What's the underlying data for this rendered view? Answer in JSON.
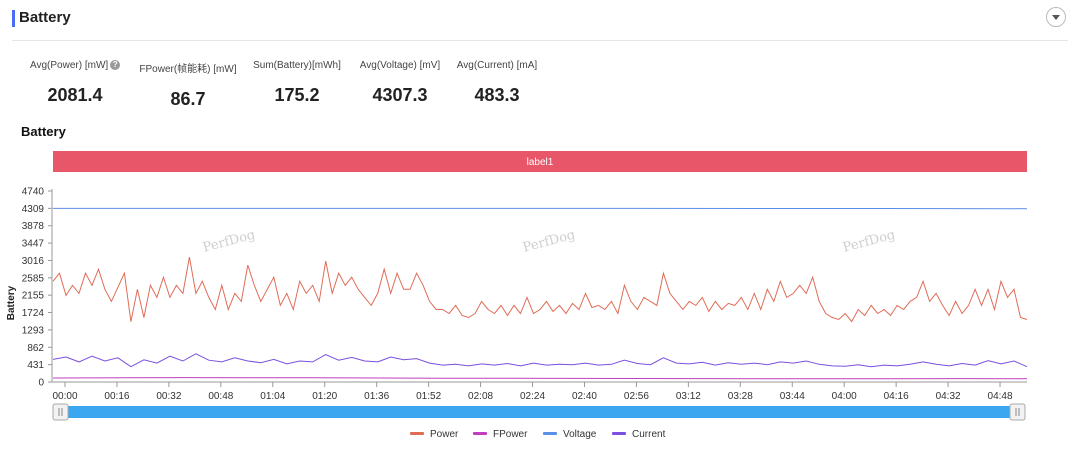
{
  "header": {
    "title": "Battery"
  },
  "metrics": [
    {
      "label": "Avg(Power) [mW]",
      "value": "2081.4",
      "help": "?"
    },
    {
      "label": "FPower(帧能耗) [mW]",
      "value": "86.7"
    },
    {
      "label": "Sum(Battery)[mWh]",
      "value": "175.2"
    },
    {
      "label": "Avg(Voltage) [mV]",
      "value": "4307.3"
    },
    {
      "label": "Avg(Current) [mA]",
      "value": "483.3"
    }
  ],
  "chart_title": "Battery",
  "colors": {
    "accent": "#4a6cf7",
    "label_band": "#e8566a",
    "power": "#e06c57",
    "fpower": "#c03fbf",
    "voltage": "#5b8fe8",
    "current": "#7b4fe0",
    "slider": "#3aa7f0"
  },
  "watermark": "PerfDog",
  "chart_data": {
    "type": "line",
    "band_label": "label1",
    "ylabel": "Battery",
    "yticks": [
      0,
      431,
      862,
      1293,
      1724,
      2155,
      2585,
      3016,
      3447,
      3878,
      4309,
      4740
    ],
    "ylim": [
      0,
      4740
    ],
    "xlim": [
      0,
      300
    ],
    "xticks": [
      "00:00",
      "00:16",
      "00:32",
      "00:48",
      "01:04",
      "01:20",
      "01:36",
      "01:52",
      "02:08",
      "02:24",
      "02:40",
      "02:56",
      "03:12",
      "03:28",
      "03:44",
      "04:00",
      "04:16",
      "04:32",
      "04:48"
    ],
    "xtick_seconds": [
      0,
      16,
      32,
      48,
      64,
      80,
      96,
      112,
      128,
      144,
      160,
      176,
      192,
      208,
      224,
      240,
      256,
      272,
      288
    ],
    "grid": false,
    "legend_position": "bottom",
    "series": [
      {
        "name": "Power",
        "points": [
          [
            0,
            2500
          ],
          [
            2,
            2700
          ],
          [
            4,
            2150
          ],
          [
            6,
            2400
          ],
          [
            8,
            2200
          ],
          [
            10,
            2700
          ],
          [
            12,
            2400
          ],
          [
            14,
            2800
          ],
          [
            16,
            2300
          ],
          [
            18,
            2000
          ],
          [
            20,
            2350
          ],
          [
            22,
            2700
          ],
          [
            24,
            1500
          ],
          [
            26,
            2300
          ],
          [
            28,
            1600
          ],
          [
            30,
            2400
          ],
          [
            32,
            2100
          ],
          [
            34,
            2600
          ],
          [
            36,
            2100
          ],
          [
            38,
            2400
          ],
          [
            40,
            2200
          ],
          [
            42,
            3100
          ],
          [
            44,
            2200
          ],
          [
            46,
            2500
          ],
          [
            48,
            2100
          ],
          [
            50,
            1800
          ],
          [
            52,
            2400
          ],
          [
            54,
            1800
          ],
          [
            56,
            2200
          ],
          [
            58,
            2000
          ],
          [
            60,
            2900
          ],
          [
            62,
            2400
          ],
          [
            64,
            2000
          ],
          [
            66,
            2300
          ],
          [
            68,
            2600
          ],
          [
            70,
            1900
          ],
          [
            72,
            2200
          ],
          [
            74,
            1800
          ],
          [
            76,
            2500
          ],
          [
            78,
            2200
          ],
          [
            80,
            2400
          ],
          [
            82,
            2000
          ],
          [
            84,
            3000
          ],
          [
            86,
            2200
          ],
          [
            88,
            2700
          ],
          [
            90,
            2400
          ],
          [
            92,
            2600
          ],
          [
            94,
            2300
          ],
          [
            96,
            2100
          ],
          [
            98,
            1900
          ],
          [
            100,
            2200
          ],
          [
            102,
            2800
          ],
          [
            104,
            2200
          ],
          [
            106,
            2700
          ],
          [
            108,
            2300
          ],
          [
            110,
            2300
          ],
          [
            112,
            2700
          ],
          [
            114,
            2400
          ],
          [
            116,
            2000
          ],
          [
            118,
            1800
          ],
          [
            120,
            1800
          ],
          [
            122,
            1700
          ],
          [
            124,
            1900
          ],
          [
            126,
            1650
          ],
          [
            128,
            1600
          ],
          [
            130,
            1700
          ],
          [
            132,
            2000
          ],
          [
            134,
            1800
          ],
          [
            136,
            1700
          ],
          [
            138,
            1900
          ],
          [
            140,
            1650
          ],
          [
            142,
            1900
          ],
          [
            144,
            1700
          ],
          [
            146,
            2100
          ],
          [
            148,
            1700
          ],
          [
            150,
            1800
          ],
          [
            152,
            2000
          ],
          [
            154,
            1750
          ],
          [
            156,
            1900
          ],
          [
            158,
            1700
          ],
          [
            160,
            1950
          ],
          [
            162,
            1800
          ],
          [
            164,
            2200
          ],
          [
            166,
            1850
          ],
          [
            168,
            1900
          ],
          [
            170,
            1800
          ],
          [
            172,
            2000
          ],
          [
            174,
            1700
          ],
          [
            176,
            2400
          ],
          [
            178,
            2000
          ],
          [
            180,
            1800
          ],
          [
            182,
            2100
          ],
          [
            184,
            2000
          ],
          [
            186,
            1900
          ],
          [
            188,
            2700
          ],
          [
            190,
            2200
          ],
          [
            192,
            2000
          ],
          [
            194,
            1800
          ],
          [
            196,
            2000
          ],
          [
            198,
            1900
          ],
          [
            200,
            2100
          ],
          [
            202,
            1750
          ],
          [
            204,
            2000
          ],
          [
            206,
            1800
          ],
          [
            208,
            1950
          ],
          [
            210,
            1900
          ],
          [
            212,
            2100
          ],
          [
            214,
            1800
          ],
          [
            216,
            2200
          ],
          [
            218,
            1800
          ],
          [
            220,
            2300
          ],
          [
            222,
            2000
          ],
          [
            224,
            2500
          ],
          [
            226,
            2100
          ],
          [
            228,
            2200
          ],
          [
            230,
            2400
          ],
          [
            232,
            2200
          ],
          [
            234,
            2600
          ],
          [
            236,
            2000
          ],
          [
            238,
            1700
          ],
          [
            240,
            1600
          ],
          [
            242,
            1550
          ],
          [
            244,
            1700
          ],
          [
            246,
            1500
          ],
          [
            248,
            1800
          ],
          [
            250,
            1650
          ],
          [
            252,
            1900
          ],
          [
            254,
            1700
          ],
          [
            256,
            1800
          ],
          [
            258,
            1650
          ],
          [
            260,
            1900
          ],
          [
            262,
            1800
          ],
          [
            264,
            2000
          ],
          [
            266,
            2100
          ],
          [
            268,
            2500
          ],
          [
            270,
            2000
          ],
          [
            272,
            2200
          ],
          [
            274,
            1900
          ],
          [
            276,
            1650
          ],
          [
            278,
            2000
          ],
          [
            280,
            1700
          ],
          [
            282,
            1900
          ],
          [
            284,
            2300
          ],
          [
            286,
            1900
          ],
          [
            288,
            2300
          ],
          [
            290,
            1800
          ],
          [
            292,
            2500
          ],
          [
            294,
            2100
          ],
          [
            296,
            2300
          ],
          [
            298,
            1600
          ],
          [
            300,
            1550
          ]
        ]
      },
      {
        "name": "FPower",
        "points": [
          [
            0,
            100
          ],
          [
            40,
            110
          ],
          [
            80,
            105
          ],
          [
            120,
            95
          ],
          [
            160,
            90
          ],
          [
            200,
            85
          ],
          [
            240,
            80
          ],
          [
            280,
            85
          ],
          [
            300,
            80
          ]
        ]
      },
      {
        "name": "Voltage",
        "points": [
          [
            0,
            4309
          ],
          [
            150,
            4309
          ],
          [
            250,
            4305
          ],
          [
            300,
            4300
          ]
        ]
      },
      {
        "name": "Current",
        "points": [
          [
            0,
            560
          ],
          [
            4,
            620
          ],
          [
            8,
            500
          ],
          [
            12,
            640
          ],
          [
            16,
            520
          ],
          [
            20,
            600
          ],
          [
            24,
            380
          ],
          [
            28,
            550
          ],
          [
            32,
            470
          ],
          [
            36,
            640
          ],
          [
            40,
            520
          ],
          [
            44,
            700
          ],
          [
            48,
            540
          ],
          [
            52,
            500
          ],
          [
            56,
            600
          ],
          [
            60,
            520
          ],
          [
            64,
            480
          ],
          [
            68,
            560
          ],
          [
            72,
            450
          ],
          [
            76,
            520
          ],
          [
            80,
            500
          ],
          [
            84,
            680
          ],
          [
            88,
            540
          ],
          [
            92,
            610
          ],
          [
            96,
            520
          ],
          [
            100,
            500
          ],
          [
            104,
            620
          ],
          [
            108,
            550
          ],
          [
            112,
            580
          ],
          [
            116,
            470
          ],
          [
            120,
            420
          ],
          [
            124,
            440
          ],
          [
            128,
            400
          ],
          [
            132,
            450
          ],
          [
            136,
            420
          ],
          [
            140,
            460
          ],
          [
            144,
            400
          ],
          [
            148,
            470
          ],
          [
            152,
            420
          ],
          [
            156,
            440
          ],
          [
            160,
            430
          ],
          [
            164,
            470
          ],
          [
            168,
            420
          ],
          [
            172,
            440
          ],
          [
            176,
            540
          ],
          [
            180,
            460
          ],
          [
            184,
            430
          ],
          [
            188,
            600
          ],
          [
            192,
            470
          ],
          [
            196,
            450
          ],
          [
            200,
            490
          ],
          [
            204,
            420
          ],
          [
            208,
            480
          ],
          [
            212,
            440
          ],
          [
            216,
            470
          ],
          [
            220,
            430
          ],
          [
            224,
            500
          ],
          [
            228,
            470
          ],
          [
            232,
            520
          ],
          [
            236,
            440
          ],
          [
            240,
            400
          ],
          [
            244,
            390
          ],
          [
            248,
            430
          ],
          [
            252,
            380
          ],
          [
            256,
            420
          ],
          [
            260,
            400
          ],
          [
            264,
            440
          ],
          [
            268,
            500
          ],
          [
            272,
            440
          ],
          [
            276,
            400
          ],
          [
            280,
            460
          ],
          [
            284,
            420
          ],
          [
            288,
            530
          ],
          [
            292,
            450
          ],
          [
            296,
            520
          ],
          [
            300,
            380
          ]
        ]
      }
    ],
    "legend": [
      "Power",
      "FPower",
      "Voltage",
      "Current"
    ]
  }
}
